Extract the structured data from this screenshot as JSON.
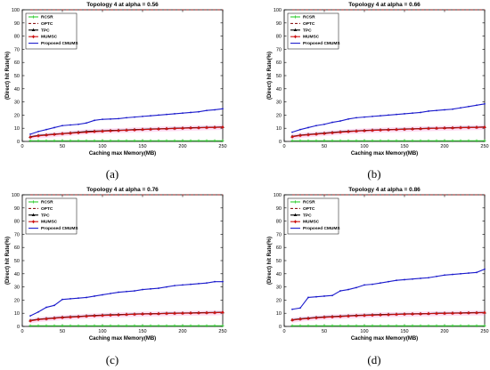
{
  "figure": {
    "panels": [
      {
        "id": "a",
        "caption": "(a)"
      },
      {
        "id": "b",
        "caption": "(b)"
      },
      {
        "id": "c",
        "caption": "(c)"
      },
      {
        "id": "d",
        "caption": "(d)"
      }
    ]
  },
  "colors": {
    "RCSR": "#2ecc2e",
    "OPTC": "#8b1a1a",
    "TPC": "#000000",
    "MUMSC": "#cc1111",
    "Proposed CMUMS": "#1a1acc",
    "band": "#ff66cc"
  },
  "chart_data": [
    {
      "type": "line",
      "title": "Topology 4 at alpha = 0.56",
      "xlabel": "Caching max Memory(MB)",
      "ylabel": "(Direct) hit Rate(%)",
      "xlim": [
        0,
        250
      ],
      "ylim": [
        0,
        100
      ],
      "xticks": [
        0,
        50,
        100,
        150,
        200,
        250
      ],
      "yticks": [
        0,
        10,
        20,
        30,
        40,
        50,
        60,
        70,
        80,
        90,
        100
      ],
      "grid": false,
      "legend": "top-left",
      "x": [
        10,
        20,
        30,
        40,
        50,
        60,
        70,
        80,
        90,
        100,
        110,
        120,
        130,
        140,
        150,
        160,
        170,
        180,
        190,
        200,
        210,
        220,
        230,
        240,
        250
      ],
      "series": [
        {
          "name": "RCSR",
          "values": [
            0.5,
            0.5,
            0.5,
            0.5,
            0.5,
            0.5,
            0.5,
            0.5,
            0.5,
            0.5,
            0.5,
            0.5,
            0.5,
            0.5,
            0.5,
            0.5,
            0.5,
            0.5,
            0.5,
            0.5,
            0.5,
            0.5,
            0.5,
            0.5,
            0.5
          ]
        },
        {
          "name": "OPTC",
          "values": [
            100,
            100,
            100,
            100,
            100,
            100,
            100,
            100,
            100,
            100,
            100,
            100,
            100,
            100,
            100,
            100,
            100,
            100,
            100,
            100,
            100,
            100,
            100,
            100,
            100
          ]
        },
        {
          "name": "TPC",
          "values": [
            3.5,
            4.5,
            5,
            5.5,
            6,
            6.5,
            7,
            7.5,
            7.8,
            8,
            8.3,
            8.5,
            8.7,
            9,
            9.2,
            9.4,
            9.6,
            9.8,
            10,
            10.2,
            10.4,
            10.5,
            10.7,
            10.8,
            11
          ]
        },
        {
          "name": "MUMSC",
          "values": [
            3.2,
            4.2,
            4.8,
            5.3,
            5.8,
            6.2,
            6.6,
            7,
            7.4,
            7.7,
            8,
            8.2,
            8.5,
            8.7,
            9,
            9.2,
            9.4,
            9.6,
            9.8,
            10,
            10.2,
            10.3,
            10.5,
            10.6,
            10.8
          ]
        },
        {
          "name": "Proposed CMUMS",
          "values": [
            5.5,
            7.5,
            9,
            10.5,
            12,
            12.5,
            13,
            14,
            16,
            16.8,
            17,
            17.3,
            18,
            18.5,
            19,
            19.5,
            20,
            20.5,
            21,
            21.5,
            22,
            22.5,
            23.5,
            24,
            24.8
          ]
        }
      ]
    },
    {
      "type": "line",
      "title": "Topology 4 at alpha = 0.66",
      "xlabel": "Caching max Memory(MB)",
      "ylabel": "(Direct) hit Rate(%)",
      "xlim": [
        0,
        250
      ],
      "ylim": [
        0,
        100
      ],
      "xticks": [
        0,
        50,
        100,
        150,
        200,
        250
      ],
      "yticks": [
        0,
        10,
        20,
        30,
        40,
        50,
        60,
        70,
        80,
        90,
        100
      ],
      "grid": false,
      "legend": "top-left",
      "x": [
        10,
        20,
        30,
        40,
        50,
        60,
        70,
        80,
        90,
        100,
        110,
        120,
        130,
        140,
        150,
        160,
        170,
        180,
        190,
        200,
        210,
        220,
        230,
        240,
        250
      ],
      "series": [
        {
          "name": "RCSR",
          "values": [
            0.5,
            0.5,
            0.5,
            0.5,
            0.5,
            0.5,
            0.5,
            0.5,
            0.5,
            0.5,
            0.5,
            0.5,
            0.5,
            0.5,
            0.5,
            0.5,
            0.5,
            0.5,
            0.5,
            0.5,
            0.5,
            0.5,
            0.5,
            0.5,
            0.5
          ]
        },
        {
          "name": "OPTC",
          "values": [
            100,
            100,
            100,
            100,
            100,
            100,
            100,
            100,
            100,
            100,
            100,
            100,
            100,
            100,
            100,
            100,
            100,
            100,
            100,
            100,
            100,
            100,
            100,
            100,
            100
          ]
        },
        {
          "name": "TPC",
          "values": [
            3.8,
            4.8,
            5.3,
            5.8,
            6.3,
            6.8,
            7.3,
            7.7,
            8,
            8.3,
            8.6,
            8.8,
            9,
            9.2,
            9.4,
            9.6,
            9.8,
            10,
            10.1,
            10.3,
            10.4,
            10.6,
            10.7,
            10.8,
            11
          ]
        },
        {
          "name": "MUMSC",
          "values": [
            3.5,
            4.5,
            5,
            5.5,
            6,
            6.5,
            7,
            7.4,
            7.8,
            8.1,
            8.4,
            8.6,
            8.8,
            9,
            9.2,
            9.4,
            9.6,
            9.8,
            10,
            10.1,
            10.2,
            10.4,
            10.5,
            10.6,
            10.8
          ]
        },
        {
          "name": "Proposed CMUMS",
          "values": [
            7,
            9,
            10.5,
            12,
            13,
            14.5,
            15.5,
            17,
            18,
            18.5,
            19,
            19.5,
            20,
            20.5,
            21,
            21.5,
            22,
            23,
            23.5,
            24,
            24.5,
            25.5,
            26.5,
            27.5,
            28.5
          ]
        }
      ]
    },
    {
      "type": "line",
      "title": "Topology 4 at alpha = 0.76",
      "xlabel": "Caching max Memory(MB)",
      "ylabel": "(Direct) hit Rate(%)",
      "xlim": [
        0,
        250
      ],
      "ylim": [
        0,
        100
      ],
      "xticks": [
        0,
        50,
        100,
        150,
        200,
        250
      ],
      "yticks": [
        0,
        10,
        20,
        30,
        40,
        50,
        60,
        70,
        80,
        90,
        100
      ],
      "grid": false,
      "legend": "top-left",
      "x": [
        10,
        20,
        30,
        40,
        50,
        60,
        70,
        80,
        90,
        100,
        110,
        120,
        130,
        140,
        150,
        160,
        170,
        180,
        190,
        200,
        210,
        220,
        230,
        240,
        250
      ],
      "series": [
        {
          "name": "RCSR",
          "values": [
            0.5,
            0.5,
            0.5,
            0.5,
            0.5,
            0.5,
            0.5,
            0.5,
            0.5,
            0.5,
            0.5,
            0.5,
            0.5,
            0.5,
            0.5,
            0.5,
            0.5,
            0.5,
            0.5,
            0.5,
            0.5,
            0.5,
            0.5,
            0.5,
            0.5
          ]
        },
        {
          "name": "OPTC",
          "values": [
            100,
            100,
            100,
            100,
            100,
            100,
            100,
            100,
            100,
            100,
            100,
            100,
            100,
            100,
            100,
            100,
            100,
            100,
            100,
            100,
            100,
            100,
            100,
            100,
            100
          ]
        },
        {
          "name": "TPC",
          "values": [
            4.5,
            5.5,
            6,
            6.5,
            7,
            7.3,
            7.6,
            8,
            8.3,
            8.6,
            8.8,
            9,
            9.2,
            9.4,
            9.6,
            9.7,
            9.8,
            10,
            10.1,
            10.2,
            10.3,
            10.4,
            10.5,
            10.6,
            10.8
          ]
        },
        {
          "name": "MUMSC",
          "values": [
            4.2,
            5.2,
            5.7,
            6.2,
            6.7,
            7,
            7.3,
            7.7,
            8,
            8.3,
            8.5,
            8.7,
            9,
            9.2,
            9.4,
            9.5,
            9.6,
            9.8,
            9.9,
            10,
            10.1,
            10.2,
            10.3,
            10.4,
            10.6
          ]
        },
        {
          "name": "Proposed CMUMS",
          "values": [
            8,
            11,
            14.5,
            16,
            20.5,
            21,
            21.5,
            22,
            23,
            24,
            25,
            26,
            26.5,
            27,
            28,
            28.5,
            29,
            30,
            31,
            31.5,
            32,
            32.5,
            33,
            34,
            34
          ]
        }
      ]
    },
    {
      "type": "line",
      "title": "Topology 4 at alpha = 0.86",
      "xlabel": "Caching max Memory(MB)",
      "ylabel": "(Direct) hit Rate(%)",
      "xlim": [
        0,
        250
      ],
      "ylim": [
        0,
        100
      ],
      "xticks": [
        0,
        50,
        100,
        150,
        200,
        250
      ],
      "yticks": [
        0,
        10,
        20,
        30,
        40,
        50,
        60,
        70,
        80,
        90,
        100
      ],
      "grid": false,
      "legend": "top-left",
      "x": [
        10,
        20,
        30,
        40,
        50,
        60,
        70,
        80,
        90,
        100,
        110,
        120,
        130,
        140,
        150,
        160,
        170,
        180,
        190,
        200,
        210,
        220,
        230,
        240,
        250
      ],
      "series": [
        {
          "name": "RCSR",
          "values": [
            0.5,
            0.5,
            0.5,
            0.5,
            0.5,
            0.5,
            0.5,
            0.5,
            0.5,
            0.5,
            0.5,
            0.5,
            0.5,
            0.5,
            0.5,
            0.5,
            0.5,
            0.5,
            0.5,
            0.5,
            0.5,
            0.5,
            0.5,
            0.5,
            0.5
          ]
        },
        {
          "name": "OPTC",
          "values": [
            100,
            100,
            100,
            100,
            100,
            100,
            100,
            100,
            100,
            100,
            100,
            100,
            100,
            100,
            100,
            100,
            100,
            100,
            100,
            100,
            100,
            100,
            100,
            100,
            100
          ]
        },
        {
          "name": "TPC",
          "values": [
            5,
            5.8,
            6.3,
            6.8,
            7.2,
            7.5,
            7.8,
            8.1,
            8.4,
            8.6,
            8.8,
            9,
            9.2,
            9.3,
            9.5,
            9.6,
            9.7,
            9.8,
            10,
            10.1,
            10.2,
            10.3,
            10.4,
            10.5,
            10.6
          ]
        },
        {
          "name": "MUMSC",
          "values": [
            4.8,
            5.5,
            6,
            6.5,
            6.9,
            7.2,
            7.5,
            7.8,
            8.1,
            8.3,
            8.5,
            8.7,
            8.9,
            9.1,
            9.3,
            9.4,
            9.5,
            9.7,
            9.8,
            9.9,
            10,
            10.1,
            10.2,
            10.3,
            10.4
          ]
        },
        {
          "name": "Proposed CMUMS",
          "values": [
            13,
            14,
            22,
            22.5,
            23,
            23.5,
            27,
            28,
            29.5,
            31.5,
            32,
            33,
            34,
            35,
            35.5,
            36,
            36.5,
            37,
            38,
            39,
            39.5,
            40,
            40.5,
            41,
            43.5
          ]
        }
      ]
    }
  ]
}
